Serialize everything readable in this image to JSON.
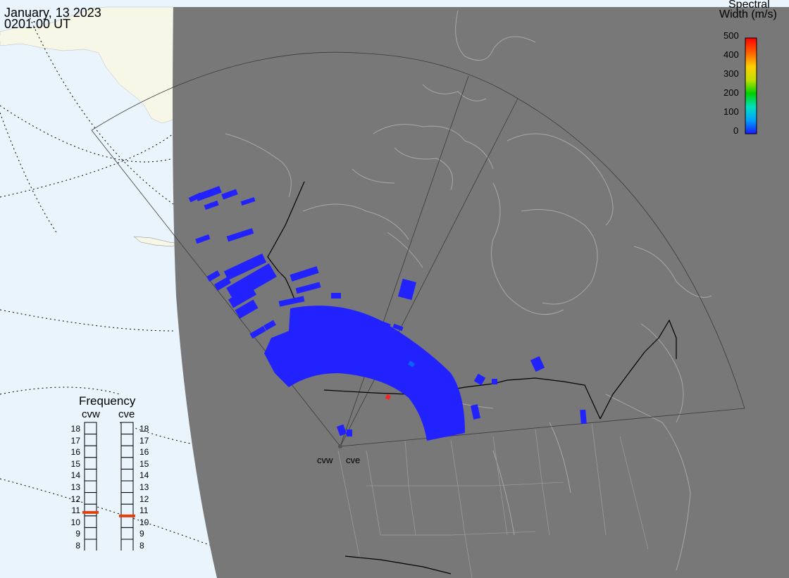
{
  "header": {
    "date": "January, 13 2023",
    "time": "0201:00 UT"
  },
  "legend": {
    "title_line1": "Spectral",
    "title_line2": "Width (m/s)",
    "ticks": [
      "500",
      "400",
      "300",
      "200",
      "100",
      "0"
    ],
    "range": [
      0,
      500
    ],
    "colors": [
      "#1a1aff",
      "#00a0ff",
      "#00e0c0",
      "#00d000",
      "#c0e000",
      "#ffd000",
      "#ff6000",
      "#ff0000"
    ]
  },
  "frequency_panel": {
    "title": "Frequency",
    "radars": [
      "cvw",
      "cve"
    ],
    "levels": [
      "18",
      "17",
      "16",
      "15",
      "14",
      "13",
      "12",
      "11",
      "10",
      "9",
      "8"
    ],
    "selected_mhz": {
      "cvw": 10.8,
      "cve": 10.5
    },
    "marker_color": "#e04010"
  },
  "radar_sites": [
    {
      "label": "cvw"
    },
    {
      "label": "cve"
    }
  ],
  "colors": {
    "ocean": "#e9f4fc",
    "land_outside": "#f7f7e8",
    "disc": "#787878",
    "scatter_blue": "#2222ff",
    "borders": "#000000",
    "coastlines": "#a8a8a8"
  }
}
